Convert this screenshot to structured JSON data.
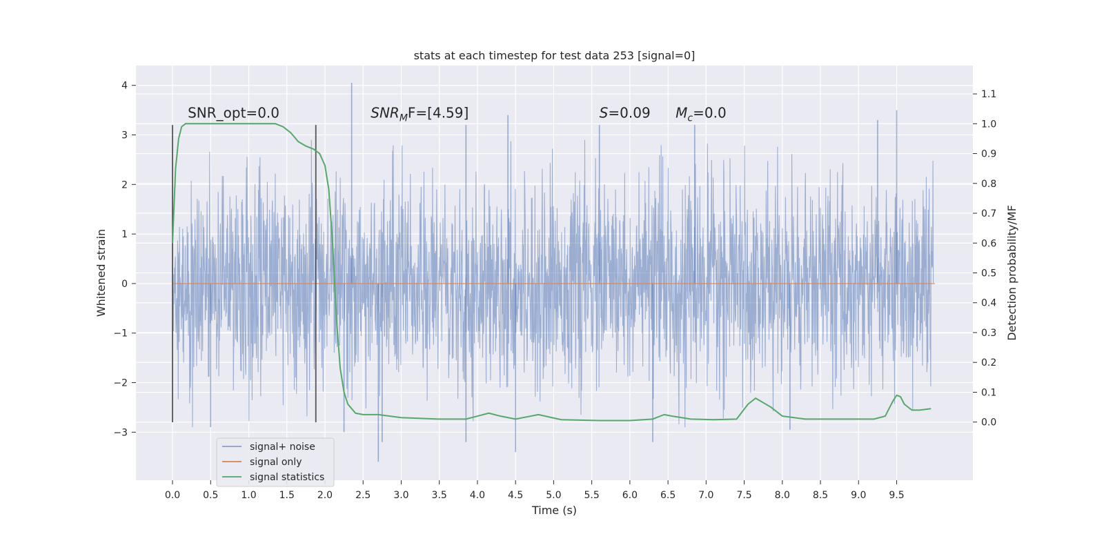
{
  "chart_data": {
    "type": "line",
    "title": "stats at each timestep for test data 253 [signal=0]",
    "xlabel": "Time (s)",
    "ylabel": "Whitened strain",
    "y2label": "Detection probability/MF",
    "xlim": [
      -0.48,
      10.5
    ],
    "ylim": [
      -3.97,
      4.4
    ],
    "y2lim": [
      -0.195,
      1.195
    ],
    "x_ticks": [
      0.0,
      0.5,
      1.0,
      1.5,
      2.0,
      2.5,
      3.0,
      3.5,
      4.0,
      4.5,
      5.0,
      5.5,
      6.0,
      6.5,
      7.0,
      7.5,
      8.0,
      8.5,
      9.0,
      9.5
    ],
    "x_tick_labels": [
      "0.0",
      "0.5",
      "1.0",
      "1.5",
      "2.0",
      "2.5",
      "3.0",
      "3.5",
      "4.0",
      "4.5",
      "5.0",
      "5.5",
      "6.0",
      "6.5",
      "7.0",
      "7.5",
      "8.0",
      "8.5",
      "9.0",
      "9.5"
    ],
    "y_ticks": [
      -3,
      -2,
      -1,
      0,
      1,
      2,
      3,
      4
    ],
    "y_tick_labels": [
      "−3",
      "−2",
      "−1",
      "0",
      "1",
      "2",
      "3",
      "4"
    ],
    "y2_ticks": [
      0.0,
      0.1,
      0.2,
      0.3,
      0.4,
      0.5,
      0.6,
      0.7,
      0.8,
      0.9,
      1.0,
      1.1
    ],
    "y2_tick_labels": [
      "0.0",
      "0.1",
      "0.2",
      "0.3",
      "0.4",
      "0.5",
      "0.6",
      "0.7",
      "0.8",
      "0.9",
      "1.0",
      "1.1"
    ],
    "grid": true,
    "legend_position": "lower-left",
    "colors": {
      "noise": "#4c72b0",
      "signal": "#dd8452",
      "stats": "#55a868",
      "marker": "#555555",
      "background": "#eaeaf2",
      "grid": "#ffffff"
    },
    "series": [
      {
        "name": "signal+ noise",
        "axis": "left",
        "description_range": [
          -3.6,
          4.05
        ],
        "spikes": [
          {
            "x": 2.35,
            "y": 4.05
          },
          {
            "x": 4.4,
            "y": 3.4
          },
          {
            "x": 9.5,
            "y": 3.5
          },
          {
            "x": 9.25,
            "y": 3.3
          },
          {
            "x": 5.6,
            "y": 3.2
          },
          {
            "x": 3.85,
            "y": 3.2
          },
          {
            "x": 6.85,
            "y": 3.2
          },
          {
            "x": 2.7,
            "y": -3.6
          },
          {
            "x": 4.5,
            "y": -3.4
          },
          {
            "x": 6.3,
            "y": -3.2
          },
          {
            "x": 2.25,
            "y": -3.0
          },
          {
            "x": 0.5,
            "y": -2.9
          },
          {
            "x": 2.75,
            "y": -3.2
          },
          {
            "x": 8.1,
            "y": -2.95
          },
          {
            "x": 3.85,
            "y": -3.2
          }
        ]
      },
      {
        "name": "signal only",
        "axis": "left",
        "x": [
          0.0,
          10.0
        ],
        "y": [
          0.0,
          0.0
        ]
      },
      {
        "name": "signal statistics",
        "axis": "right",
        "x": [
          0.0,
          0.04,
          0.08,
          0.12,
          0.17,
          0.25,
          0.4,
          0.6,
          0.8,
          1.0,
          1.2,
          1.35,
          1.45,
          1.55,
          1.65,
          1.75,
          1.85,
          1.93,
          2.0,
          2.05,
          2.1,
          2.15,
          2.2,
          2.25,
          2.3,
          2.4,
          2.5,
          2.7,
          3.0,
          3.5,
          3.85,
          4.0,
          4.15,
          4.3,
          4.5,
          4.8,
          5.1,
          5.6,
          6.0,
          6.3,
          6.45,
          6.55,
          6.8,
          7.1,
          7.4,
          7.55,
          7.65,
          7.85,
          8.0,
          8.3,
          8.7,
          9.2,
          9.35,
          9.45,
          9.5,
          9.55,
          9.6,
          9.7,
          9.8,
          9.95
        ],
        "y": [
          0.6,
          0.85,
          0.95,
          0.99,
          1.0,
          1.0,
          1.0,
          1.0,
          1.0,
          1.0,
          1.0,
          1.0,
          0.99,
          0.97,
          0.94,
          0.925,
          0.915,
          0.9,
          0.86,
          0.78,
          0.6,
          0.35,
          0.18,
          0.1,
          0.06,
          0.03,
          0.025,
          0.025,
          0.015,
          0.01,
          0.01,
          0.02,
          0.03,
          0.02,
          0.01,
          0.025,
          0.008,
          0.005,
          0.005,
          0.01,
          0.025,
          0.02,
          0.01,
          0.008,
          0.01,
          0.06,
          0.08,
          0.05,
          0.02,
          0.01,
          0.01,
          0.01,
          0.02,
          0.07,
          0.09,
          0.085,
          0.06,
          0.04,
          0.04,
          0.045
        ]
      }
    ],
    "vertical_markers": [
      0.0,
      1.88
    ],
    "vertical_marker_range": [
      -2.8,
      3.2
    ],
    "annotations": [
      {
        "id": "snr-opt",
        "x": 0.2,
        "y": 3.35,
        "text": "SNR_opt=0.0",
        "style": "plain"
      },
      {
        "id": "snr-mf",
        "x": 2.6,
        "y": 3.35,
        "text_main": "SNR",
        "text_sub": "M",
        "text_tail": "F=[4.59]",
        "style": "math"
      },
      {
        "id": "s-stat",
        "x": 5.6,
        "y": 3.35,
        "text_main": "S",
        "text_tail": "=0.09",
        "style": "math"
      },
      {
        "id": "mc-stat",
        "x": 6.6,
        "y": 3.35,
        "text_main": "M",
        "text_sub": "c",
        "text_tail": "=0.0",
        "style": "math"
      }
    ],
    "legend": [
      {
        "label": "signal+ noise",
        "color": "#4c72b0"
      },
      {
        "label": "signal only",
        "color": "#dd8452"
      },
      {
        "label": "signal statistics",
        "color": "#55a868"
      }
    ]
  }
}
